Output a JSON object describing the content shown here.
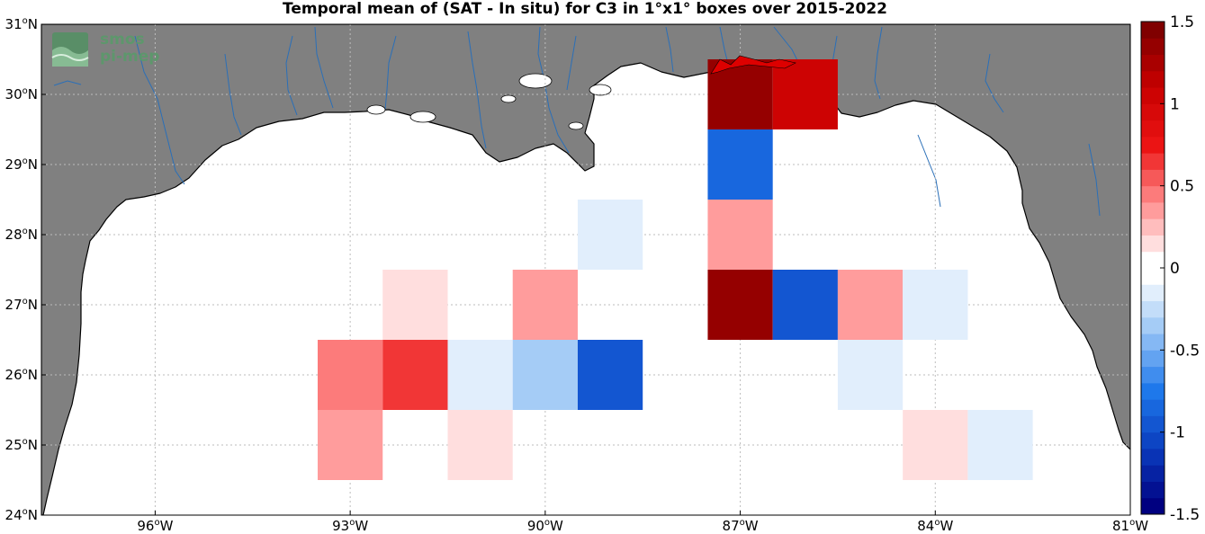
{
  "title": "Temporal mean of (SAT - In situ) for C3 in 1°x1° boxes over 2015-2022",
  "logo": {
    "line1": "smos",
    "line2": "pi-mep"
  },
  "map": {
    "lon_range": [
      -97.75,
      -81
    ],
    "lat_range": [
      24,
      31
    ],
    "x_ticks": [
      {
        "lon": -96,
        "deg": "96",
        "hemi": "W"
      },
      {
        "lon": -93,
        "deg": "93",
        "hemi": "W"
      },
      {
        "lon": -90,
        "deg": "90",
        "hemi": "W"
      },
      {
        "lon": -87,
        "deg": "87",
        "hemi": "W"
      },
      {
        "lon": -84,
        "deg": "84",
        "hemi": "W"
      },
      {
        "lon": -81,
        "deg": "81",
        "hemi": "W"
      }
    ],
    "y_ticks": [
      {
        "lat": 24,
        "deg": "24",
        "hemi": "N"
      },
      {
        "lat": 25,
        "deg": "25",
        "hemi": "N"
      },
      {
        "lat": 26,
        "deg": "26",
        "hemi": "N"
      },
      {
        "lat": 27,
        "deg": "27",
        "hemi": "N"
      },
      {
        "lat": 28,
        "deg": "28",
        "hemi": "N"
      },
      {
        "lat": 29,
        "deg": "29",
        "hemi": "N"
      },
      {
        "lat": 30,
        "deg": "30",
        "hemi": "N"
      },
      {
        "lat": 31,
        "deg": "31",
        "hemi": "N"
      }
    ],
    "colors": {
      "land": "#808080",
      "rivers": "#2a6fb8",
      "grid": "#bdbdbd",
      "ocean": "#ffffff"
    }
  },
  "chart_data": {
    "type": "heatmap",
    "title": "Temporal mean of (SAT - In situ) for C3 in 1°x1° boxes over 2015-2022",
    "xlabel": "",
    "ylabel": "",
    "xlim": [
      -97.75,
      -81
    ],
    "ylim": [
      24,
      31
    ],
    "cell_size_deg": 1,
    "cells": [
      {
        "lon": -87.0,
        "lat": 30.0,
        "value": 1.4
      },
      {
        "lon": -86.0,
        "lat": 30.0,
        "value": 1.0
      },
      {
        "lon": -87.0,
        "lat": 29.0,
        "value": -0.8
      },
      {
        "lon": -87.0,
        "lat": 28.0,
        "value": 0.3
      },
      {
        "lon": -89.0,
        "lat": 28.0,
        "value": -0.1
      },
      {
        "lon": -87.0,
        "lat": 27.0,
        "value": 1.4
      },
      {
        "lon": -86.0,
        "lat": 27.0,
        "value": -0.9
      },
      {
        "lon": -85.0,
        "lat": 27.0,
        "value": 0.3
      },
      {
        "lon": -84.0,
        "lat": 27.0,
        "value": -0.2
      },
      {
        "lon": -92.0,
        "lat": 27.0,
        "value": 0.15
      },
      {
        "lon": -90.0,
        "lat": 27.0,
        "value": 0.3
      },
      {
        "lon": -93.0,
        "lat": 26.0,
        "value": 0.45
      },
      {
        "lon": -92.0,
        "lat": 26.0,
        "value": 0.6
      },
      {
        "lon": -91.0,
        "lat": 26.0,
        "value": -0.1
      },
      {
        "lon": -90.0,
        "lat": 26.0,
        "value": -0.4
      },
      {
        "lon": -89.0,
        "lat": 26.0,
        "value": -0.9
      },
      {
        "lon": -85.0,
        "lat": 26.0,
        "value": -0.2
      },
      {
        "lon": -93.0,
        "lat": 25.0,
        "value": 0.3
      },
      {
        "lon": -91.0,
        "lat": 25.0,
        "value": 0.15
      },
      {
        "lon": -84.0,
        "lat": 25.0,
        "value": 0.15
      },
      {
        "lon": -83.0,
        "lat": 25.0,
        "value": -0.2
      }
    ],
    "colorbar": {
      "range": [
        -1.5,
        1.5
      ],
      "step": 0.1,
      "ticks": [
        1.5,
        1,
        0.5,
        0,
        -0.5,
        -1,
        -1.5
      ],
      "tick_labels": [
        "1.5",
        "1",
        "0.5",
        "0",
        "-0.5",
        "-1",
        "-1.5"
      ]
    }
  }
}
